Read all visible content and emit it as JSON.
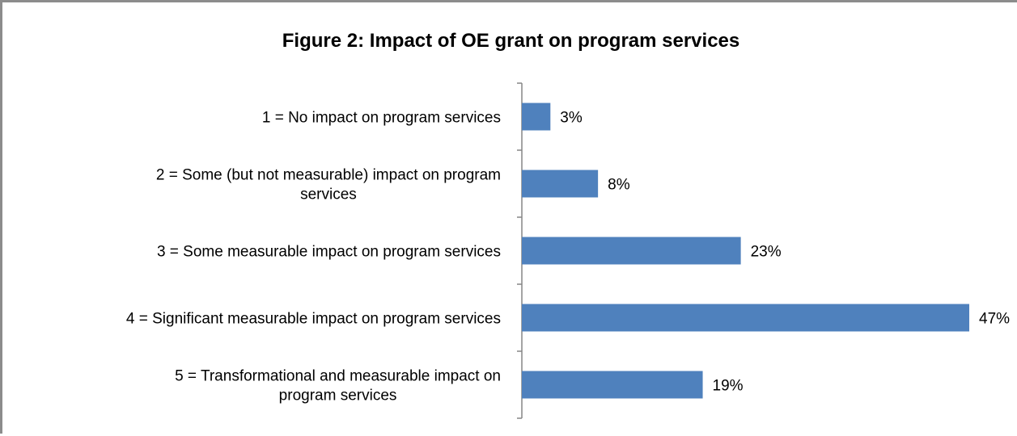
{
  "chart_data": {
    "type": "bar",
    "orientation": "horizontal",
    "title": "Figure 2: Impact of OE grant on program services",
    "categories": [
      "1 = No impact on program services",
      "2 = Some (but not measurable) impact on program services",
      "3 = Some measurable impact on program services",
      "4 = Significant measurable impact on program services",
      "5 = Transformational and measurable impact on program services"
    ],
    "category_lines": [
      [
        "1 = No impact on program services"
      ],
      [
        "2 = Some (but not measurable) impact on program",
        "services"
      ],
      [
        "3 = Some measurable impact on program services"
      ],
      [
        "4 = Significant measurable impact on program services"
      ],
      [
        "5 = Transformational and measurable impact on",
        "program services"
      ]
    ],
    "values": [
      3,
      8,
      23,
      47,
      19
    ],
    "value_labels": [
      "3%",
      "8%",
      "23%",
      "47%",
      "19%"
    ],
    "xlim": [
      0,
      47
    ],
    "grid": false,
    "legend": "none",
    "bar_color": "#4f81bd",
    "axis_color": "#868686"
  }
}
